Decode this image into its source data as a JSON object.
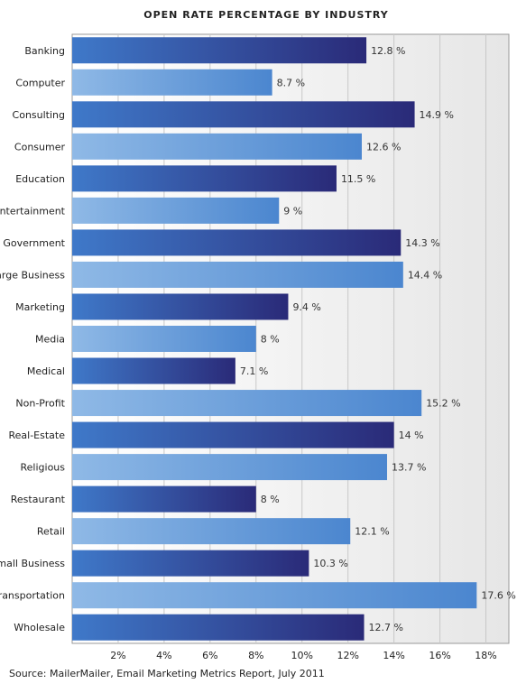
{
  "chart_data": {
    "type": "bar",
    "orientation": "horizontal",
    "title": "OPEN RATE PERCENTAGE BY INDUSTRY",
    "categories": [
      "Banking",
      "Computer",
      "Consulting",
      "Consumer",
      "Education",
      "Entertainment",
      "Government",
      "Large Business",
      "Marketing",
      "Media",
      "Medical",
      "Non-Profit",
      "Real-Estate",
      "Religious",
      "Restaurant",
      "Retail",
      "Small Business",
      "Transportation",
      "Wholesale"
    ],
    "values": [
      12.8,
      8.7,
      14.9,
      12.6,
      11.5,
      9,
      14.3,
      14.4,
      9.4,
      8,
      7.1,
      15.2,
      14,
      13.7,
      8,
      12.1,
      10.3,
      17.6,
      12.7
    ],
    "value_labels": [
      "12.8 %",
      "8.7 %",
      "14.9 %",
      "12.6 %",
      "11.5 %",
      "9 %",
      "14.3 %",
      "14.4 %",
      "9.4 %",
      "8 %",
      "7.1 %",
      "15.2 %",
      "14 %",
      "13.7 %",
      "8 %",
      "12.1 %",
      "10.3 %",
      "17.6 %",
      "12.7 %"
    ],
    "xlim": [
      0,
      19
    ],
    "ticks": [
      2,
      4,
      6,
      8,
      10,
      12,
      14,
      16,
      18
    ],
    "tick_labels": [
      "2%",
      "4%",
      "6%",
      "8%",
      "10%",
      "12%",
      "14%",
      "16%",
      "18%"
    ],
    "xlabel": "",
    "ylabel": "",
    "grid": true,
    "colors": {
      "dark_start": "#3f79c9",
      "dark_end": "#2a2a78",
      "light_start": "#8fb9e6",
      "light_end": "#4b86cf"
    }
  },
  "source": "Source: MailerMailer, Email Marketing Metrics Report, July 2011"
}
